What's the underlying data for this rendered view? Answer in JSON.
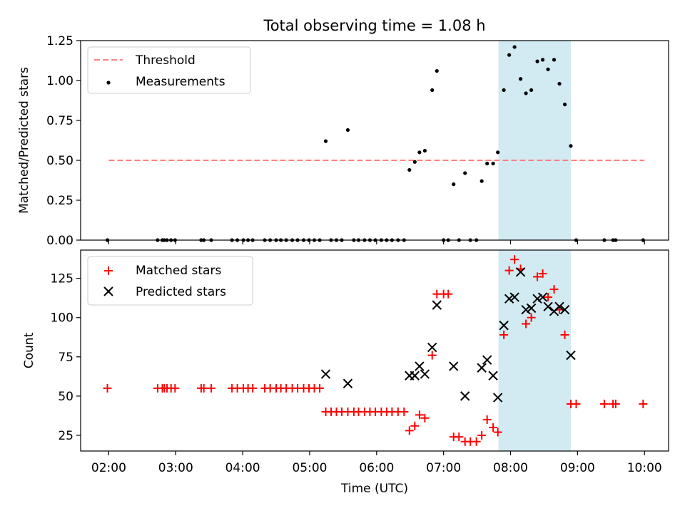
{
  "title": "Total observing time = 1.08 h",
  "xlabel": "Time (UTC)",
  "x_ticks": [
    {
      "label": "02:00",
      "hour": 2
    },
    {
      "label": "03:00",
      "hour": 3
    },
    {
      "label": "04:00",
      "hour": 4
    },
    {
      "label": "05:00",
      "hour": 5
    },
    {
      "label": "06:00",
      "hour": 6
    },
    {
      "label": "07:00",
      "hour": 7
    },
    {
      "label": "08:00",
      "hour": 8
    },
    {
      "label": "09:00",
      "hour": 9
    },
    {
      "label": "10:00",
      "hour": 10
    }
  ],
  "colors": {
    "threshold": "#ff8080",
    "measurements": "#000000",
    "matched": "#ff0000",
    "predicted": "#000000",
    "observing_window": "#add8e6"
  },
  "chart_data": [
    {
      "type": "scatter",
      "panel": "top",
      "ylabel": "Matched/Predicted stars",
      "xlim_hours": [
        1.58,
        10.36
      ],
      "ylim": [
        0,
        1.25
      ],
      "y_ticks": [
        "0.00",
        "0.25",
        "0.50",
        "0.75",
        "1.00",
        "1.25"
      ],
      "y_tick_values": [
        0,
        0.25,
        0.5,
        0.75,
        1.0,
        1.25
      ],
      "legend_position": "top-left",
      "highlight_span_hours": [
        7.82,
        8.9
      ],
      "threshold": {
        "name": "Threshold",
        "y": 0.5,
        "x_range_hours": [
          2.0,
          10.0
        ],
        "style": "dashed"
      },
      "series": [
        {
          "name": "Measurements",
          "marker": "dot",
          "points_hours": [
            [
              1.98,
              0
            ],
            [
              2.73,
              0
            ],
            [
              2.8,
              0
            ],
            [
              2.83,
              0
            ],
            [
              2.87,
              0
            ],
            [
              2.93,
              0
            ],
            [
              2.99,
              0
            ],
            [
              3.38,
              0
            ],
            [
              3.42,
              0
            ],
            [
              3.53,
              0
            ],
            [
              3.84,
              0
            ],
            [
              3.92,
              0
            ],
            [
              4.01,
              0
            ],
            [
              4.08,
              0
            ],
            [
              4.15,
              0
            ],
            [
              4.33,
              0
            ],
            [
              4.41,
              0
            ],
            [
              4.5,
              0
            ],
            [
              4.57,
              0
            ],
            [
              4.65,
              0
            ],
            [
              4.74,
              0
            ],
            [
              4.82,
              0
            ],
            [
              4.91,
              0
            ],
            [
              4.99,
              0
            ],
            [
              5.07,
              0
            ],
            [
              5.15,
              0
            ],
            [
              5.24,
              0.62
            ],
            [
              5.32,
              0
            ],
            [
              5.4,
              0
            ],
            [
              5.48,
              0
            ],
            [
              5.57,
              0.69
            ],
            [
              5.66,
              0
            ],
            [
              5.73,
              0
            ],
            [
              5.82,
              0
            ],
            [
              5.9,
              0
            ],
            [
              5.98,
              0
            ],
            [
              6.07,
              0
            ],
            [
              6.15,
              0
            ],
            [
              6.23,
              0
            ],
            [
              6.32,
              0
            ],
            [
              6.41,
              0
            ],
            [
              6.49,
              0.44
            ],
            [
              6.57,
              0.49
            ],
            [
              6.64,
              0.55
            ],
            [
              6.72,
              0.56
            ],
            [
              6.83,
              0.94
            ],
            [
              6.9,
              1.06
            ],
            [
              7.0,
              0
            ],
            [
              7.07,
              0
            ],
            [
              7.15,
              0.35
            ],
            [
              7.23,
              0
            ],
            [
              7.32,
              0.42
            ],
            [
              7.4,
              0
            ],
            [
              7.49,
              0
            ],
            [
              7.57,
              0.37
            ],
            [
              7.65,
              0.48
            ],
            [
              7.74,
              0.48
            ],
            [
              7.81,
              0.55
            ],
            [
              7.9,
              0.94
            ],
            [
              7.98,
              1.16
            ],
            [
              8.06,
              1.21
            ],
            [
              8.15,
              1.01
            ],
            [
              8.23,
              0.92
            ],
            [
              8.31,
              0.94
            ],
            [
              8.4,
              1.12
            ],
            [
              8.48,
              1.13
            ],
            [
              8.56,
              1.07
            ],
            [
              8.65,
              1.13
            ],
            [
              8.73,
              0.98
            ],
            [
              8.81,
              0.85
            ],
            [
              8.9,
              0.59
            ],
            [
              8.98,
              0
            ],
            [
              9.4,
              0
            ],
            [
              9.53,
              0
            ],
            [
              9.57,
              0
            ],
            [
              9.98,
              0
            ]
          ]
        }
      ]
    },
    {
      "type": "scatter",
      "panel": "bottom",
      "ylabel": "Count",
      "xlim_hours": [
        1.58,
        10.36
      ],
      "ylim": [
        15,
        143
      ],
      "y_ticks": [
        "25",
        "50",
        "75",
        "100",
        "125"
      ],
      "y_tick_values": [
        25,
        50,
        75,
        100,
        125
      ],
      "legend_position": "top-left",
      "highlight_span_hours": [
        7.82,
        8.9
      ],
      "series": [
        {
          "name": "Matched stars",
          "marker": "plus",
          "points_hours": [
            [
              1.98,
              55
            ],
            [
              2.73,
              55
            ],
            [
              2.8,
              55
            ],
            [
              2.83,
              55
            ],
            [
              2.87,
              55
            ],
            [
              2.93,
              55
            ],
            [
              2.99,
              55
            ],
            [
              3.38,
              55
            ],
            [
              3.42,
              55
            ],
            [
              3.53,
              55
            ],
            [
              3.84,
              55
            ],
            [
              3.92,
              55
            ],
            [
              4.01,
              55
            ],
            [
              4.08,
              55
            ],
            [
              4.15,
              55
            ],
            [
              4.33,
              55
            ],
            [
              4.41,
              55
            ],
            [
              4.5,
              55
            ],
            [
              4.57,
              55
            ],
            [
              4.65,
              55
            ],
            [
              4.74,
              55
            ],
            [
              4.82,
              55
            ],
            [
              4.91,
              55
            ],
            [
              4.99,
              55
            ],
            [
              5.07,
              55
            ],
            [
              5.15,
              55
            ],
            [
              5.24,
              40
            ],
            [
              5.32,
              40
            ],
            [
              5.4,
              40
            ],
            [
              5.48,
              40
            ],
            [
              5.57,
              40
            ],
            [
              5.66,
              40
            ],
            [
              5.73,
              40
            ],
            [
              5.82,
              40
            ],
            [
              5.9,
              40
            ],
            [
              5.98,
              40
            ],
            [
              6.07,
              40
            ],
            [
              6.15,
              40
            ],
            [
              6.23,
              40
            ],
            [
              6.32,
              40
            ],
            [
              6.41,
              40
            ],
            [
              6.49,
              28
            ],
            [
              6.57,
              31
            ],
            [
              6.64,
              38
            ],
            [
              6.72,
              36
            ],
            [
              6.83,
              76
            ],
            [
              6.9,
              115
            ],
            [
              7.0,
              115
            ],
            [
              7.07,
              115
            ],
            [
              7.15,
              24
            ],
            [
              7.23,
              24
            ],
            [
              7.32,
              21
            ],
            [
              7.4,
              21
            ],
            [
              7.49,
              21
            ],
            [
              7.57,
              25
            ],
            [
              7.65,
              35
            ],
            [
              7.74,
              30
            ],
            [
              7.81,
              27
            ],
            [
              7.9,
              89
            ],
            [
              7.98,
              130
            ],
            [
              8.06,
              137
            ],
            [
              8.15,
              131
            ],
            [
              8.23,
              96
            ],
            [
              8.31,
              100
            ],
            [
              8.4,
              126
            ],
            [
              8.48,
              128
            ],
            [
              8.56,
              113
            ],
            [
              8.65,
              118
            ],
            [
              8.73,
              105
            ],
            [
              8.81,
              89
            ],
            [
              8.9,
              45
            ],
            [
              8.98,
              45
            ],
            [
              9.4,
              45
            ],
            [
              9.53,
              45
            ],
            [
              9.57,
              45
            ],
            [
              9.98,
              45
            ]
          ]
        },
        {
          "name": "Predicted stars",
          "marker": "x",
          "points_hours": [
            [
              5.24,
              64
            ],
            [
              5.57,
              58
            ],
            [
              6.49,
              63
            ],
            [
              6.57,
              63
            ],
            [
              6.64,
              69
            ],
            [
              6.72,
              64
            ],
            [
              6.83,
              81
            ],
            [
              6.9,
              108
            ],
            [
              7.15,
              69
            ],
            [
              7.32,
              50
            ],
            [
              7.57,
              68
            ],
            [
              7.65,
              73
            ],
            [
              7.74,
              63
            ],
            [
              7.81,
              49
            ],
            [
              7.9,
              95
            ],
            [
              7.98,
              112
            ],
            [
              8.06,
              113
            ],
            [
              8.15,
              129
            ],
            [
              8.23,
              105
            ],
            [
              8.31,
              106
            ],
            [
              8.4,
              112
            ],
            [
              8.48,
              113
            ],
            [
              8.56,
              107
            ],
            [
              8.65,
              104
            ],
            [
              8.73,
              107
            ],
            [
              8.81,
              105
            ],
            [
              8.9,
              76
            ]
          ]
        }
      ]
    }
  ]
}
